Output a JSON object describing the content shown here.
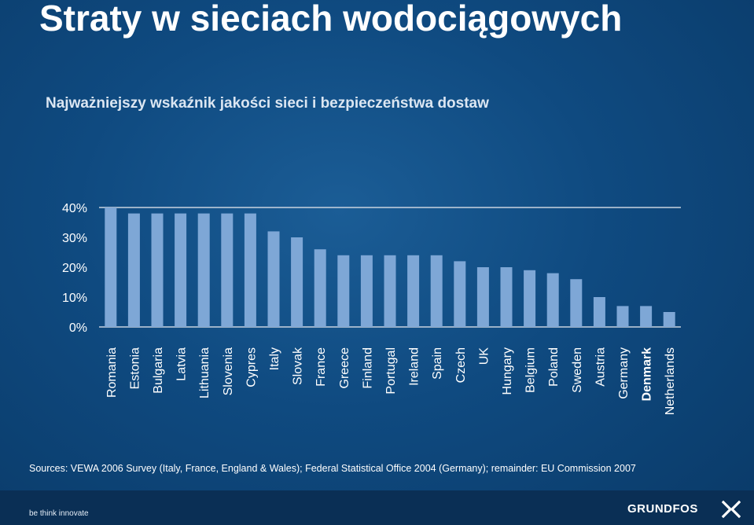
{
  "title": "Straty w sieciach wodociągowych",
  "subtitle": "Najważniejszy wskaźnik jakości sieci i bezpieczeństwa dostaw",
  "sources": "Sources: VEWA 2006 Survey (Italy, France, England & Wales); Federal Statistical Office 2004 (Germany); remainder: EU Commission 2007",
  "footer": {
    "tagline": "be think innovate",
    "logo_text": "GRUNDFOS",
    "logo_icon": "grundfos-x-icon"
  },
  "colors": {
    "bar": "#7ea7d6",
    "axis": "#c9d3df",
    "background": "#0f4a80"
  },
  "chart_data": {
    "type": "bar",
    "categories": [
      "Romania",
      "Estonia",
      "Bulgaria",
      "Latvia",
      "Lithuania",
      "Slovenia",
      "Cypres",
      "Italy",
      "Slovak",
      "France",
      "Greece",
      "Finland",
      "Portugal",
      "Ireland",
      "Spain",
      "Czech",
      "UK",
      "Hungary",
      "Belgium",
      "Poland",
      "Sweden",
      "Austria",
      "Germany",
      "Denmark",
      "Netherlands"
    ],
    "values": [
      40,
      38,
      38,
      38,
      38,
      38,
      38,
      32,
      30,
      26,
      24,
      24,
      24,
      24,
      24,
      22,
      20,
      20,
      19,
      18,
      16,
      10,
      7,
      7,
      5
    ],
    "highlighted": [
      "Denmark"
    ],
    "yticks": [
      "0%",
      "10%",
      "20%",
      "30%",
      "40%"
    ],
    "ylim": [
      0,
      40
    ],
    "title": "",
    "xlabel": "",
    "ylabel": "",
    "grid": false,
    "legend": "none"
  }
}
